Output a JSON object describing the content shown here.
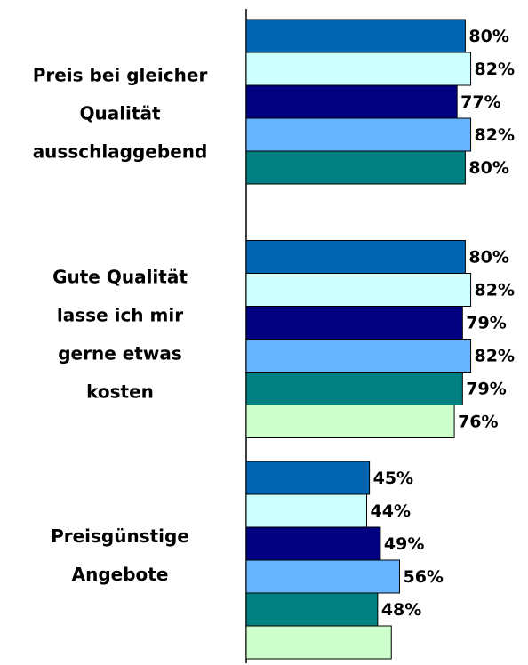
{
  "chart_data": {
    "type": "bar",
    "orientation": "horizontal",
    "categories": [
      [
        "Preis bei gleicher",
        "Qualität",
        "ausschlaggebend"
      ],
      [
        "Gute Qualität",
        "lasse ich mir",
        "gerne etwas",
        "kosten"
      ],
      [
        "Preisgünstige",
        "Angebote"
      ]
    ],
    "xlim": [
      0,
      100
    ],
    "series": [
      {
        "color": "#0066b3",
        "values": [
          80,
          80,
          45
        ],
        "value_labels": [
          "80%",
          "80%",
          "45%"
        ]
      },
      {
        "color": "#ccffff",
        "values": [
          82,
          82,
          44
        ],
        "value_labels": [
          "82%",
          "82%",
          "44%"
        ]
      },
      {
        "color": "#000080",
        "values": [
          77,
          79,
          49
        ],
        "value_labels": [
          "77%",
          "79%",
          "49%"
        ]
      },
      {
        "color": "#66b3ff",
        "values": [
          82,
          82,
          56
        ],
        "value_labels": [
          "82%",
          "82%",
          "56%"
        ]
      },
      {
        "color": "#008080",
        "values": [
          80,
          79,
          48
        ],
        "value_labels": [
          "80%",
          "79%",
          "48%"
        ]
      },
      {
        "color": "#ccffcc",
        "values": [
          null,
          76,
          53
        ],
        "value_labels": [
          null,
          "76%",
          null
        ]
      }
    ]
  }
}
